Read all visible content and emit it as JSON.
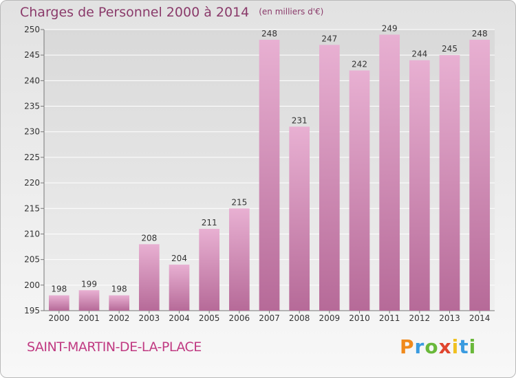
{
  "title": "Charges de Personnel 2000 à 2014",
  "subtitle": "(en milliers d'€)",
  "place_name": "SAINT-MARTIN-DE-LA-PLACE",
  "logo_text": "Proxiti",
  "colors": {
    "bar": "#d48ab4",
    "bar_top": "#e8b0d2",
    "bar_bottom": "#b66a98",
    "title": "#8a3a6a",
    "place": "#c03a82",
    "grid": "#ffffff"
  },
  "chart_data": {
    "type": "bar",
    "title": "Charges de Personnel 2000 à 2014",
    "subtitle": "(en milliers d'€)",
    "categories": [
      "2000",
      "2001",
      "2002",
      "2003",
      "2004",
      "2005",
      "2006",
      "2007",
      "2008",
      "2009",
      "2010",
      "2011",
      "2012",
      "2013",
      "2014"
    ],
    "values": [
      198,
      199,
      198,
      208,
      204,
      211,
      215,
      248,
      231,
      247,
      242,
      249,
      244,
      245,
      248
    ],
    "ylim": [
      195,
      250
    ],
    "yticks": [
      195,
      200,
      205,
      210,
      215,
      220,
      225,
      230,
      235,
      240,
      245,
      250
    ],
    "xlabel": "",
    "ylabel": "",
    "grid": true
  }
}
